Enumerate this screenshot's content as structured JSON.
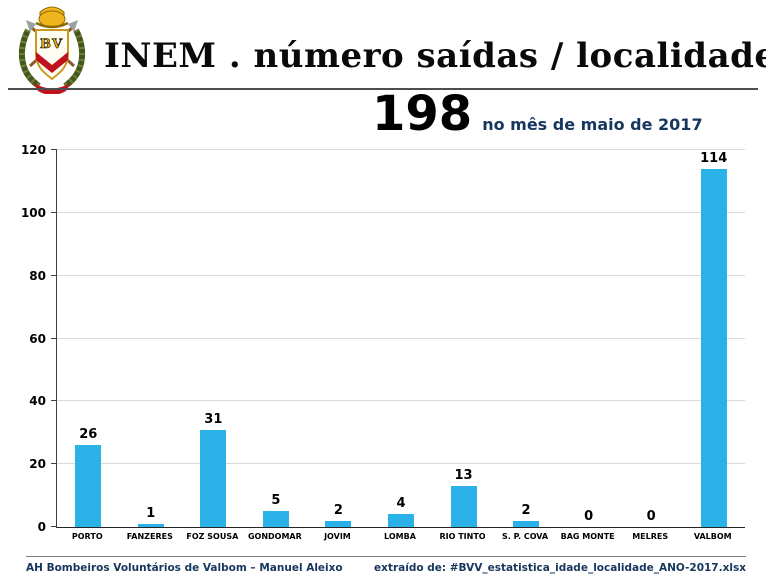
{
  "header": {
    "title": "INEM . número saídas / localidade"
  },
  "summary": {
    "total": "198",
    "caption": "no mês de maio de 2017"
  },
  "chart_data": {
    "type": "bar",
    "title": "INEM . número saídas / localidade",
    "subtitle": "198 no mês de maio de 2017",
    "categories": [
      "PORTO",
      "FANZERES",
      "FOZ SOUSA",
      "GONDOMAR",
      "JOVIM",
      "LOMBA",
      "RIO TINTO",
      "S. P. COVA",
      "BAG MONTE",
      "MELRES",
      "VALBOM"
    ],
    "values": [
      26,
      1,
      31,
      5,
      2,
      4,
      13,
      2,
      0,
      0,
      114
    ],
    "total": 198,
    "period": "maio de 2017",
    "xlabel": "",
    "ylabel": "",
    "ylim": [
      0,
      120
    ],
    "ytick_step": 20,
    "grid": true,
    "legend": false,
    "data_labels": true,
    "bar_color": "#2ab1e8"
  },
  "footer": {
    "left": "AH Bombeiros Voluntários de Valbom – Manuel Aleixo",
    "right": "extraído de: #BVV_estatistica_idade_localidade_ANO-2017.xlsx"
  },
  "colors": {
    "accent_navy": "#17365d",
    "bar": "#2ab1e8",
    "gridline": "#d9d9d9"
  }
}
